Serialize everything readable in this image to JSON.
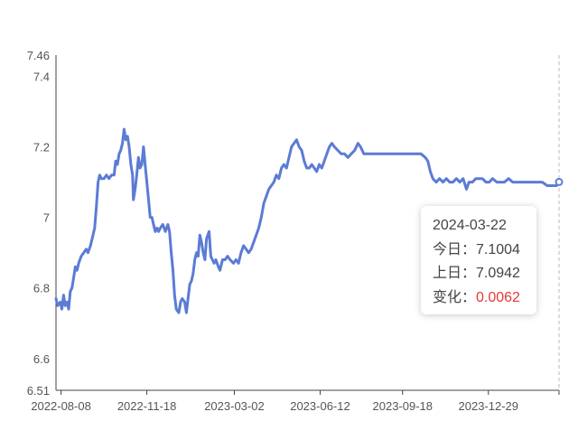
{
  "chart_data": {
    "type": "line",
    "x_ticks": [
      "2022-08-08",
      "2022-11-18",
      "2023-03-02",
      "2023-06-12",
      "2023-09-18",
      "2023-12-29"
    ],
    "y_ticks": [
      "6.51",
      "6.6",
      "6.8",
      "7",
      "7.2",
      "7.4",
      "7.46"
    ],
    "ylim": [
      6.51,
      7.46
    ],
    "xlim": [
      "2022-08-02",
      "2024-03-22"
    ],
    "grid": false,
    "series_color": "#5b7bd5",
    "series": [
      {
        "points": [
          [
            "2022-08-02",
            6.77
          ],
          [
            "2022-08-04",
            6.75
          ],
          [
            "2022-08-07",
            6.76
          ],
          [
            "2022-08-09",
            6.74
          ],
          [
            "2022-08-11",
            6.78
          ],
          [
            "2022-08-13",
            6.75
          ],
          [
            "2022-08-15",
            6.76
          ],
          [
            "2022-08-17",
            6.74
          ],
          [
            "2022-08-19",
            6.79
          ],
          [
            "2022-08-21",
            6.8
          ],
          [
            "2022-08-23",
            6.83
          ],
          [
            "2022-08-25",
            6.86
          ],
          [
            "2022-08-27",
            6.85
          ],
          [
            "2022-08-29",
            6.87
          ],
          [
            "2022-09-01",
            6.89
          ],
          [
            "2022-09-04",
            6.9
          ],
          [
            "2022-09-07",
            6.91
          ],
          [
            "2022-09-09",
            6.9
          ],
          [
            "2022-09-12",
            6.92
          ],
          [
            "2022-09-15",
            6.95
          ],
          [
            "2022-09-17",
            6.97
          ],
          [
            "2022-09-19",
            7.03
          ],
          [
            "2022-09-21",
            7.1
          ],
          [
            "2022-09-23",
            7.12
          ],
          [
            "2022-09-25",
            7.11
          ],
          [
            "2022-09-28",
            7.11
          ],
          [
            "2022-10-01",
            7.12
          ],
          [
            "2022-10-04",
            7.11
          ],
          [
            "2022-10-07",
            7.12
          ],
          [
            "2022-10-10",
            7.12
          ],
          [
            "2022-10-12",
            7.16
          ],
          [
            "2022-10-14",
            7.15
          ],
          [
            "2022-10-16",
            7.18
          ],
          [
            "2022-10-18",
            7.19
          ],
          [
            "2022-10-20",
            7.21
          ],
          [
            "2022-10-22",
            7.25
          ],
          [
            "2022-10-24",
            7.22
          ],
          [
            "2022-10-26",
            7.23
          ],
          [
            "2022-10-28",
            7.2
          ],
          [
            "2022-10-30",
            7.15
          ],
          [
            "2022-11-01",
            7.12
          ],
          [
            "2022-11-02",
            7.05
          ],
          [
            "2022-11-04",
            7.08
          ],
          [
            "2022-11-06",
            7.12
          ],
          [
            "2022-11-08",
            7.17
          ],
          [
            "2022-11-10",
            7.14
          ],
          [
            "2022-11-12",
            7.15
          ],
          [
            "2022-11-14",
            7.2
          ],
          [
            "2022-11-16",
            7.15
          ],
          [
            "2022-11-18",
            7.1
          ],
          [
            "2022-11-20",
            7.05
          ],
          [
            "2022-11-22",
            7.0
          ],
          [
            "2022-11-24",
            7.0
          ],
          [
            "2022-11-26",
            6.98
          ],
          [
            "2022-11-28",
            6.96
          ],
          [
            "2022-11-30",
            6.97
          ],
          [
            "2022-12-02",
            6.96
          ],
          [
            "2022-12-04",
            6.97
          ],
          [
            "2022-12-07",
            6.98
          ],
          [
            "2022-12-10",
            6.96
          ],
          [
            "2022-12-13",
            6.98
          ],
          [
            "2022-12-15",
            6.96
          ],
          [
            "2022-12-17",
            6.9
          ],
          [
            "2022-12-19",
            6.85
          ],
          [
            "2022-12-21",
            6.78
          ],
          [
            "2022-12-23",
            6.74
          ],
          [
            "2022-12-26",
            6.73
          ],
          [
            "2022-12-28",
            6.76
          ],
          [
            "2022-12-30",
            6.77
          ],
          [
            "2023-01-02",
            6.76
          ],
          [
            "2023-01-04",
            6.73
          ],
          [
            "2023-01-06",
            6.77
          ],
          [
            "2023-01-08",
            6.81
          ],
          [
            "2023-01-10",
            6.82
          ],
          [
            "2023-01-12",
            6.84
          ],
          [
            "2023-01-14",
            6.88
          ],
          [
            "2023-01-16",
            6.9
          ],
          [
            "2023-01-18",
            6.89
          ],
          [
            "2023-01-20",
            6.95
          ],
          [
            "2023-01-22",
            6.93
          ],
          [
            "2023-01-24",
            6.9
          ],
          [
            "2023-01-26",
            6.88
          ],
          [
            "2023-01-28",
            6.94
          ],
          [
            "2023-01-31",
            6.96
          ],
          [
            "2023-02-02",
            6.89
          ],
          [
            "2023-02-04",
            6.88
          ],
          [
            "2023-02-06",
            6.87
          ],
          [
            "2023-02-08",
            6.88
          ],
          [
            "2023-02-11",
            6.86
          ],
          [
            "2023-02-13",
            6.85
          ],
          [
            "2023-02-16",
            6.88
          ],
          [
            "2023-02-19",
            6.88
          ],
          [
            "2023-02-22",
            6.89
          ],
          [
            "2023-02-25",
            6.88
          ],
          [
            "2023-03-01",
            6.87
          ],
          [
            "2023-03-04",
            6.88
          ],
          [
            "2023-03-07",
            6.87
          ],
          [
            "2023-03-10",
            6.9
          ],
          [
            "2023-03-13",
            6.92
          ],
          [
            "2023-03-16",
            6.91
          ],
          [
            "2023-03-19",
            6.9
          ],
          [
            "2023-03-22",
            6.91
          ],
          [
            "2023-03-25",
            6.93
          ],
          [
            "2023-03-28",
            6.95
          ],
          [
            "2023-03-31",
            6.97
          ],
          [
            "2023-04-03",
            7.0
          ],
          [
            "2023-04-06",
            7.04
          ],
          [
            "2023-04-09",
            7.06
          ],
          [
            "2023-04-12",
            7.08
          ],
          [
            "2023-04-15",
            7.09
          ],
          [
            "2023-04-18",
            7.1
          ],
          [
            "2023-04-21",
            7.12
          ],
          [
            "2023-04-24",
            7.11
          ],
          [
            "2023-04-27",
            7.14
          ],
          [
            "2023-04-30",
            7.15
          ],
          [
            "2023-05-03",
            7.14
          ],
          [
            "2023-05-06",
            7.17
          ],
          [
            "2023-05-09",
            7.2
          ],
          [
            "2023-05-12",
            7.21
          ],
          [
            "2023-05-15",
            7.22
          ],
          [
            "2023-05-18",
            7.2
          ],
          [
            "2023-05-21",
            7.19
          ],
          [
            "2023-05-24",
            7.16
          ],
          [
            "2023-05-27",
            7.14
          ],
          [
            "2023-05-30",
            7.14
          ],
          [
            "2023-06-02",
            7.15
          ],
          [
            "2023-06-05",
            7.14
          ],
          [
            "2023-06-08",
            7.13
          ],
          [
            "2023-06-11",
            7.15
          ],
          [
            "2023-06-14",
            7.14
          ],
          [
            "2023-06-17",
            7.16
          ],
          [
            "2023-06-20",
            7.18
          ],
          [
            "2023-06-23",
            7.2
          ],
          [
            "2023-06-26",
            7.21
          ],
          [
            "2023-06-29",
            7.2
          ],
          [
            "2023-07-03",
            7.19
          ],
          [
            "2023-07-07",
            7.18
          ],
          [
            "2023-07-11",
            7.18
          ],
          [
            "2023-07-15",
            7.17
          ],
          [
            "2023-07-19",
            7.18
          ],
          [
            "2023-07-23",
            7.19
          ],
          [
            "2023-07-27",
            7.21
          ],
          [
            "2023-07-30",
            7.2
          ],
          [
            "2023-08-03",
            7.18
          ],
          [
            "2023-08-07",
            7.18
          ],
          [
            "2023-08-12",
            7.18
          ],
          [
            "2023-08-18",
            7.18
          ],
          [
            "2023-08-25",
            7.18
          ],
          [
            "2023-09-01",
            7.18
          ],
          [
            "2023-09-10",
            7.18
          ],
          [
            "2023-09-20",
            7.18
          ],
          [
            "2023-09-30",
            7.18
          ],
          [
            "2023-10-05",
            7.18
          ],
          [
            "2023-10-10",
            7.18
          ],
          [
            "2023-10-15",
            7.17
          ],
          [
            "2023-10-18",
            7.16
          ],
          [
            "2023-10-21",
            7.13
          ],
          [
            "2023-10-24",
            7.11
          ],
          [
            "2023-10-28",
            7.1
          ],
          [
            "2023-11-01",
            7.11
          ],
          [
            "2023-11-05",
            7.1
          ],
          [
            "2023-11-09",
            7.11
          ],
          [
            "2023-11-13",
            7.1
          ],
          [
            "2023-11-17",
            7.1
          ],
          [
            "2023-11-21",
            7.11
          ],
          [
            "2023-11-25",
            7.1
          ],
          [
            "2023-11-29",
            7.11
          ],
          [
            "2023-12-03",
            7.08
          ],
          [
            "2023-12-06",
            7.1
          ],
          [
            "2023-12-10",
            7.1
          ],
          [
            "2023-12-14",
            7.11
          ],
          [
            "2023-12-18",
            7.11
          ],
          [
            "2023-12-22",
            7.11
          ],
          [
            "2023-12-26",
            7.1
          ],
          [
            "2023-12-30",
            7.1
          ],
          [
            "2024-01-03",
            7.11
          ],
          [
            "2024-01-08",
            7.1
          ],
          [
            "2024-01-12",
            7.1
          ],
          [
            "2024-01-17",
            7.1
          ],
          [
            "2024-01-22",
            7.11
          ],
          [
            "2024-01-27",
            7.1
          ],
          [
            "2024-02-01",
            7.1
          ],
          [
            "2024-02-07",
            7.1
          ],
          [
            "2024-02-13",
            7.1
          ],
          [
            "2024-02-19",
            7.1
          ],
          [
            "2024-02-25",
            7.1
          ],
          [
            "2024-03-02",
            7.1
          ],
          [
            "2024-03-08",
            7.09
          ],
          [
            "2024-03-14",
            7.09
          ],
          [
            "2024-03-19",
            7.09
          ],
          [
            "2024-03-22",
            7.1004
          ]
        ]
      }
    ],
    "tooltip": {
      "date": "2024-03-22",
      "today_label": "今日：",
      "today_value": "7.1004",
      "yesterday_label": "上日：",
      "yesterday_value": "7.0942",
      "change_label": "变化：",
      "change_value": "0.0062",
      "change_color": "#e53935"
    }
  }
}
